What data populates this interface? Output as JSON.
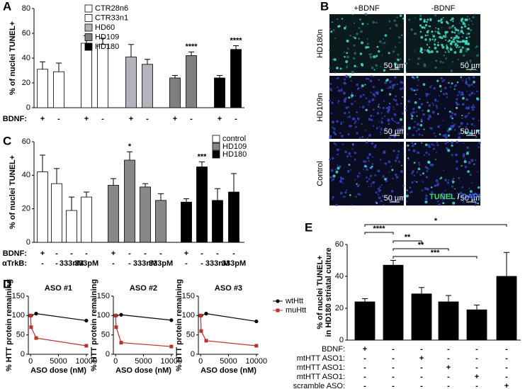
{
  "chart_data": [
    {
      "type": "bar",
      "panel_label": "A",
      "ylabel": "% of nuclei TUNEL+",
      "ylim": [
        0,
        80
      ],
      "yticks": [
        0,
        20,
        40,
        60,
        80
      ],
      "row_names": [
        "BDNF:"
      ],
      "series": [
        {
          "name": "CTR28n6",
          "color": "#ffffff",
          "values": [
            31,
            29
          ],
          "errors": [
            6,
            7
          ],
          "row_labels": [
            [
              "+",
              "-"
            ]
          ]
        },
        {
          "name": "CTR33n1",
          "color": "#ffffff",
          "values": [
            52,
            51
          ],
          "errors": [
            6,
            5
          ],
          "row_labels": [
            [
              "+",
              "-"
            ]
          ]
        },
        {
          "name": "HD60",
          "color": "#b3b3bd",
          "values": [
            41,
            35
          ],
          "errors": [
            10,
            4
          ],
          "row_labels": [
            [
              "+",
              "-"
            ]
          ]
        },
        {
          "name": "HD109",
          "color": "#7f7f7f",
          "values": [
            24,
            42
          ],
          "errors": [
            2,
            3
          ],
          "row_labels": [
            [
              "+",
              "-"
            ]
          ],
          "annotations": [
            null,
            "****"
          ]
        },
        {
          "name": "HD180",
          "color": "#000000",
          "values": [
            24,
            47
          ],
          "errors": [
            2,
            3
          ],
          "row_labels": [
            [
              "+",
              "-"
            ]
          ],
          "annotations": [
            null,
            "****"
          ]
        }
      ]
    },
    {
      "type": "bar",
      "panel_label": "C",
      "ylabel": "% of nuclei TUNEL+",
      "ylim": [
        0,
        60
      ],
      "yticks": [
        0,
        20,
        40,
        60
      ],
      "row_names": [
        "BDNF:",
        "αTrkB:"
      ],
      "series": [
        {
          "name": "control",
          "color": "#ffffff",
          "values": [
            42,
            35,
            19,
            27
          ],
          "errors": [
            10,
            9,
            8,
            3
          ],
          "row_labels": [
            [
              "+",
              "-",
              "-",
              "-"
            ],
            [
              "-",
              "-",
              "333nM",
              "333pM"
            ]
          ]
        },
        {
          "name": "HD109",
          "color": "#888888",
          "values": [
            34,
            49,
            33,
            25
          ],
          "errors": [
            4,
            5,
            2,
            4
          ],
          "row_labels": [
            [
              "+",
              "-",
              "-",
              "-"
            ],
            [
              "-",
              "-",
              "333nM",
              "333pM"
            ]
          ],
          "annotations": [
            null,
            "*",
            null,
            null
          ]
        },
        {
          "name": "HD180",
          "color": "#000000",
          "values": [
            24,
            45,
            25,
            30
          ],
          "errors": [
            2,
            3,
            7,
            11
          ],
          "row_labels": [
            [
              "+",
              "-",
              "-",
              "-"
            ],
            [
              "-",
              "-",
              "333nM",
              "333pM"
            ]
          ],
          "annotations": [
            null,
            "***",
            null,
            null
          ]
        }
      ]
    },
    {
      "type": "line",
      "panel_label": "D",
      "title": "ASO #1",
      "ylabel": "% HTT protein remaining",
      "xlabel": "ASO dose (nM)",
      "xlim": [
        -400,
        10400
      ],
      "xticks": [
        0,
        5000,
        10000
      ],
      "ylim": [
        0,
        150
      ],
      "yticks": [
        0,
        50,
        100,
        150
      ],
      "x": [
        0,
        100,
        1000,
        10000
      ],
      "series": [
        {
          "color": "#000000",
          "marker": "circle",
          "values": [
            100,
            100,
            105,
            87
          ]
        },
        {
          "color": "#b5332a",
          "marker": "square",
          "values": [
            100,
            70,
            42,
            22
          ]
        }
      ]
    },
    {
      "type": "line",
      "title": "ASO #2",
      "ylabel": "% HTT protein remaining",
      "xlabel": "ASO dose (nM)",
      "xlim": [
        -400,
        10400
      ],
      "xticks": [
        0,
        5000,
        10000
      ],
      "ylim": [
        0,
        150
      ],
      "yticks": [
        0,
        50,
        100,
        150
      ],
      "x": [
        0,
        100,
        1000,
        10000
      ],
      "series": [
        {
          "color": "#000000",
          "marker": "circle",
          "values": [
            100,
            100,
            102,
            88
          ]
        },
        {
          "color": "#b5332a",
          "marker": "square",
          "values": [
            100,
            70,
            30,
            20
          ]
        }
      ]
    },
    {
      "type": "line",
      "title": "ASO #3",
      "ylabel": "% HTT protein remaining",
      "xlabel": "ASO dose (nM)",
      "xlim": [
        -400,
        10400
      ],
      "xticks": [
        0,
        5000,
        10000
      ],
      "ylim": [
        0,
        150
      ],
      "yticks": [
        0,
        50,
        100,
        150
      ],
      "x": [
        0,
        100,
        1000,
        10000
      ],
      "series": [
        {
          "name": "wtHtt",
          "color": "#000000",
          "marker": "circle",
          "values": [
            100,
            100,
            105,
            85
          ]
        },
        {
          "name": "muHtt",
          "color": "#b5332a",
          "marker": "square",
          "values": [
            100,
            60,
            35,
            22
          ]
        }
      ]
    },
    {
      "type": "bar",
      "panel_label": "E",
      "ylabel": [
        "% of nuclei TUNEL+",
        "in HD180 striatal culture"
      ],
      "ylim": [
        0,
        60
      ],
      "yticks": [
        0,
        20,
        40,
        60
      ],
      "row_names": [
        "BDNF:",
        "mtHTT ASO1:",
        "mtHTT ASO1:",
        "mtHTT ASO1:",
        "scramble ASO:"
      ],
      "series": [
        {
          "color": "#000000",
          "values": [
            24,
            47,
            29,
            24,
            19,
            40
          ],
          "errors": [
            2,
            3,
            4,
            4,
            3,
            15
          ],
          "row_labels": [
            [
              "+",
              "-",
              "-",
              "-",
              "-",
              "-"
            ],
            [
              "-",
              "-",
              "+",
              "-",
              "-",
              "-"
            ],
            [
              "-",
              "-",
              "-",
              "+",
              "-",
              "-"
            ],
            [
              "-",
              "-",
              "-",
              "-",
              "+",
              "-"
            ],
            [
              "-",
              "-",
              "-",
              "-",
              "-",
              "+"
            ]
          ]
        }
      ],
      "brackets": [
        "****",
        "**",
        "**",
        "***",
        "*"
      ]
    }
  ],
  "images_panel": {
    "panel_label": "B",
    "columns": [
      "+BDNF",
      "-BDNF"
    ],
    "rows": [
      "HD180n",
      "HD109n",
      "Control"
    ],
    "scale_bar": "50 µm",
    "stain_labels": [
      "TUNEL",
      " / ",
      "DAPI"
    ]
  }
}
